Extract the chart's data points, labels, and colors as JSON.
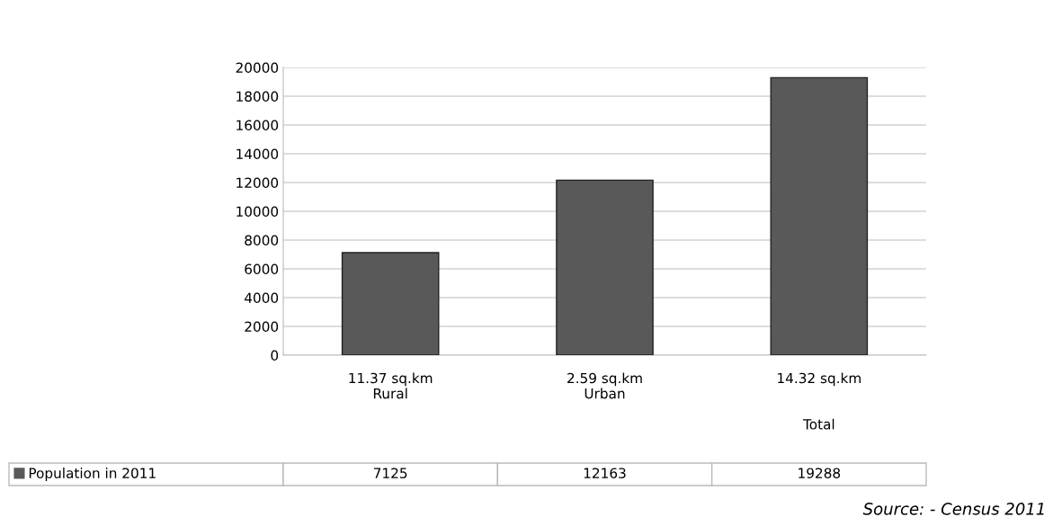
{
  "chart_data": {
    "type": "bar",
    "categories": [
      "11.37 sq.km\nRural",
      "2.59 sq.km\nUrban",
      "14.32 sq.km\n\n\nTotal"
    ],
    "series": [
      {
        "name": "Population in 2011",
        "color": "#595959",
        "values": [
          7125,
          12163,
          19288
        ]
      }
    ],
    "ylim": [
      0,
      20000
    ],
    "yticks": [
      0,
      2000,
      4000,
      6000,
      8000,
      10000,
      12000,
      14000,
      16000,
      18000,
      20000
    ],
    "grid": "y",
    "legend": "bottom",
    "data_labels": true,
    "annotations": [
      "Source: - Census 2011"
    ]
  }
}
